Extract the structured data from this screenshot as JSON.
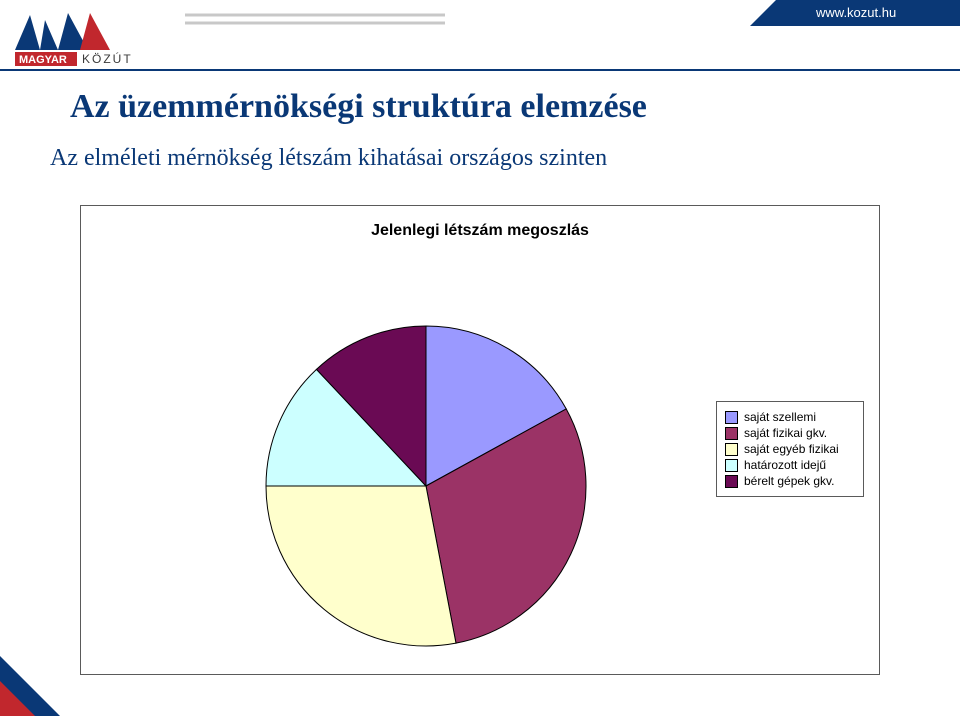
{
  "header": {
    "brand_top": "MAGYAR",
    "brand_right": "KÖZÚT",
    "url": "www.kozut.hu",
    "brand_color": "#0a3876",
    "brand_red": "#c1272d",
    "light_gray": "#c8c8c8"
  },
  "title": "Az üzemmérnökségi struktúra elemzése",
  "subtitle": "Az elméleti mérnökség létszám kihatásai országos szinten",
  "chart": {
    "type": "pie",
    "title": "Jelenlegi létszám megoszlás",
    "background_color": "#ffffff",
    "border_color": "#5a5a5a",
    "pie_radius": 160,
    "slices": [
      {
        "label": "saját szellemi",
        "value": 17,
        "color": "#9a99ff"
      },
      {
        "label": "saját fizikai gkv.",
        "value": 30,
        "color": "#9b3366"
      },
      {
        "label": "saját egyéb fizikai",
        "value": 28,
        "color": "#ffffcc"
      },
      {
        "label": "határozott idejű",
        "value": 13,
        "color": "#ccffff"
      },
      {
        "label": "bérelt gépek gkv.",
        "value": 12,
        "color": "#6a0a54"
      }
    ],
    "title_fontsize": 16,
    "legend_fontsize": 12
  }
}
